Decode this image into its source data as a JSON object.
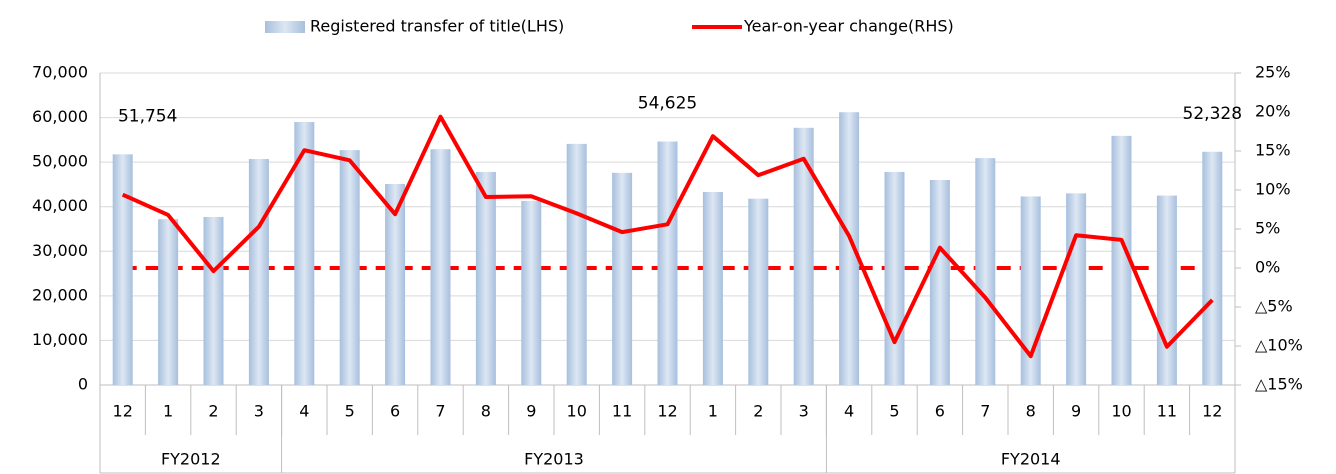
{
  "chart_data": {
    "type": "bar_line",
    "legend": "top",
    "categories": [
      "12",
      "1",
      "2",
      "3",
      "4",
      "5",
      "6",
      "7",
      "8",
      "9",
      "10",
      "11",
      "12",
      "1",
      "2",
      "3",
      "4",
      "5",
      "6",
      "7",
      "8",
      "9",
      "10",
      "11",
      "12"
    ],
    "groups": [
      {
        "label": "FY2012",
        "from": 0,
        "to": 3
      },
      {
        "label": "FY2013",
        "from": 4,
        "to": 15
      },
      {
        "label": "FY2014",
        "from": 16,
        "to": 24
      }
    ],
    "series": [
      {
        "name": "Registered transfer of title(LHS)",
        "type": "bar",
        "color": "#b8cce4",
        "values": [
          51754,
          37200,
          37700,
          50700,
          59000,
          52700,
          45100,
          52900,
          47800,
          41300,
          54100,
          47600,
          54625,
          43300,
          41800,
          57700,
          61200,
          47800,
          46000,
          50900,
          42300,
          43000,
          55900,
          42500,
          52328
        ],
        "value_labels": [
          "51,754",
          null,
          null,
          null,
          null,
          null,
          null,
          null,
          null,
          null,
          null,
          null,
          "54,625",
          null,
          null,
          null,
          null,
          null,
          null,
          null,
          null,
          null,
          null,
          null,
          "52,328"
        ]
      },
      {
        "name": "Year-on-year change(RHS)",
        "type": "line",
        "axis": "y2",
        "color": "#ff0000",
        "values": [
          9.4,
          6.8,
          -0.4,
          5.3,
          15.1,
          13.8,
          6.9,
          19.4,
          9.1,
          9.2,
          7.0,
          4.6,
          5.6,
          16.9,
          11.9,
          14.0,
          4.1,
          -9.5,
          2.6,
          -3.8,
          -11.3,
          4.2,
          3.6,
          -10.1,
          -4.1
        ]
      }
    ],
    "reference_lines": [
      {
        "value": 0,
        "axis": "y2",
        "color": "#ff0000",
        "style": "dashed"
      }
    ],
    "ylim": [
      0,
      70000
    ],
    "yticks": [
      0,
      {
        "value": 10000,
        "label": "10,000"
      },
      {
        "value": 20000,
        "label": "20,000"
      },
      {
        "value": 30000,
        "label": "30,000"
      },
      {
        "value": 40000,
        "label": "40,000"
      },
      {
        "value": 50000,
        "label": "50,000"
      },
      {
        "value": 60000,
        "label": "60,000"
      },
      {
        "value": 70000,
        "label": "70,000"
      }
    ],
    "y2lim": [
      -15,
      25
    ],
    "y2ticks": [
      {
        "value": -15,
        "label": "△15%"
      },
      {
        "value": -10,
        "label": "△10%"
      },
      {
        "value": -5,
        "label": "△5%"
      },
      {
        "value": 0,
        "label": "0%"
      },
      {
        "value": 5,
        "label": "5%"
      },
      {
        "value": 10,
        "label": "10%"
      },
      {
        "value": 15,
        "label": "15%"
      },
      {
        "value": 20,
        "label": "20%"
      },
      {
        "value": 25,
        "label": "25%"
      }
    ],
    "y2tick_negative_color": "#ff0000",
    "grid": true
  }
}
